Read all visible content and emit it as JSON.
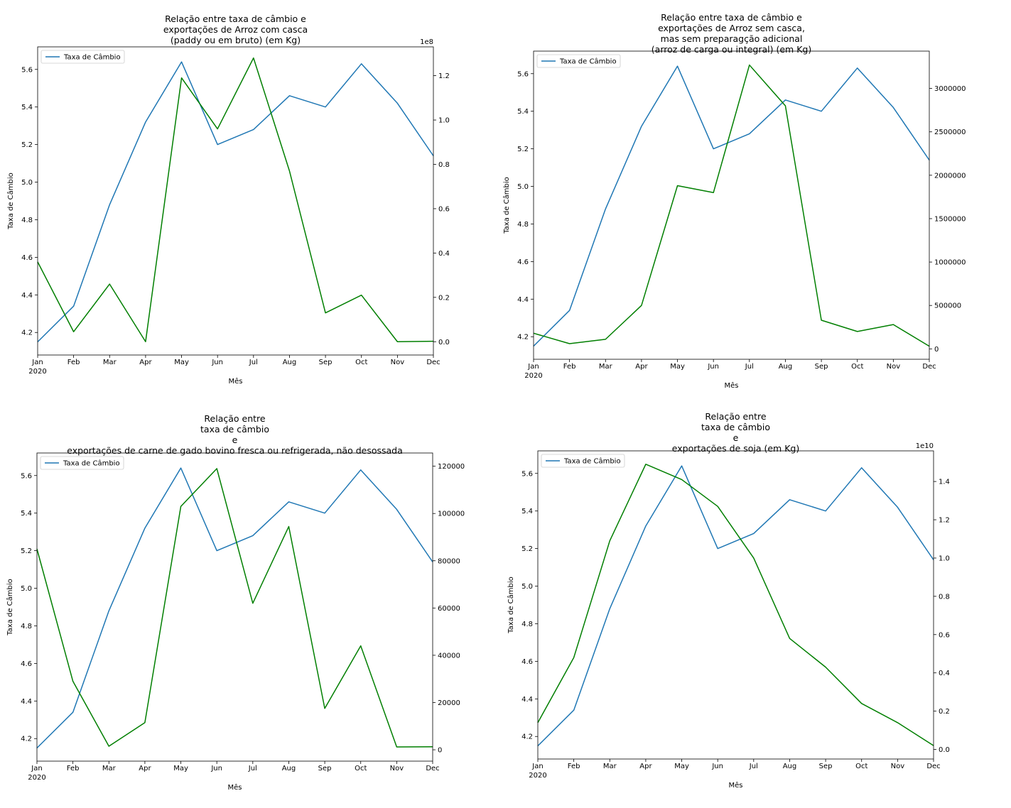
{
  "figure": {
    "background": "#ffffff"
  },
  "colors": {
    "exchange_rate": "#1f77b4",
    "exports": "#007f00"
  },
  "chart_data": [
    {
      "type": "line",
      "title": "Relação entre taxa de câmbio e\nexportações de Arroz com casca\n(paddy ou em bruto) (em Kg)",
      "xlabel": "Mês",
      "ylabel": "Taxa de Câmbio",
      "y2label": "",
      "categories": [
        "Jan",
        "Feb",
        "Mar",
        "Apr",
        "May",
        "Jun",
        "Jul",
        "Aug",
        "Sep",
        "Oct",
        "Nov",
        "Dec"
      ],
      "year_label": "2020",
      "ylim": [
        4.08,
        5.72
      ],
      "yticks": [
        4.2,
        4.4,
        4.6,
        4.8,
        5.0,
        5.2,
        5.4,
        5.6
      ],
      "y2lim": [
        -0.06,
        1.33
      ],
      "y2ticks": [
        0.0,
        0.2,
        0.4,
        0.6,
        0.8,
        1.0,
        1.2
      ],
      "y2_offset_text": "1e8",
      "legend": {
        "label": "Taxa de Câmbio",
        "loc": "upper left"
      },
      "grid": false,
      "series": [
        {
          "name": "Taxa de Câmbio",
          "axis": "left",
          "values": [
            4.15,
            4.34,
            4.88,
            5.32,
            5.64,
            5.2,
            5.28,
            5.46,
            5.4,
            5.63,
            5.42,
            5.14
          ]
        },
        {
          "axis": "right",
          "values": [
            0.36,
            0.045,
            0.26,
            0.0,
            1.19,
            0.96,
            1.28,
            0.77,
            0.13,
            0.21,
            0.0,
            0.002
          ]
        }
      ]
    },
    {
      "type": "line",
      "title": "Relação entre taxa de câmbio e\nexportações de Arroz sem casca,\nmas sem preparagção adicional\n(arroz de carga ou integral) (em Kg)",
      "xlabel": "Mês",
      "ylabel": "Taxa de Câmbio",
      "y2label": "",
      "categories": [
        "Jan",
        "Feb",
        "Mar",
        "Apr",
        "May",
        "Jun",
        "Jul",
        "Aug",
        "Sep",
        "Oct",
        "Nov",
        "Dec"
      ],
      "year_label": "2020",
      "ylim": [
        4.08,
        5.72
      ],
      "yticks": [
        4.2,
        4.4,
        4.6,
        4.8,
        5.0,
        5.2,
        5.4,
        5.6
      ],
      "y2lim": [
        -120000,
        3430000
      ],
      "y2ticks": [
        0,
        500000,
        1000000,
        1500000,
        2000000,
        2500000,
        3000000
      ],
      "y2_offset_text": "",
      "legend": {
        "label": "Taxa de Câmbio",
        "loc": "upper left"
      },
      "grid": false,
      "series": [
        {
          "name": "Taxa de Câmbio",
          "axis": "left",
          "values": [
            4.15,
            4.34,
            4.88,
            5.32,
            5.64,
            5.2,
            5.28,
            5.46,
            5.4,
            5.63,
            5.42,
            5.14
          ]
        },
        {
          "axis": "right",
          "values": [
            180000,
            60000,
            110000,
            500000,
            1880000,
            1800000,
            3270000,
            2800000,
            330000,
            200000,
            280000,
            30000
          ]
        }
      ]
    },
    {
      "type": "line",
      "title": "Relação entre\ntaxa de câmbio\ne\nexportações de carne de gado bovino fresca ou refrigerada, não desossada",
      "xlabel": "Mês",
      "ylabel": "Taxa de Câmbio",
      "y2label": "",
      "categories": [
        "Jan",
        "Feb",
        "Mar",
        "Apr",
        "May",
        "Jun",
        "Jul",
        "Aug",
        "Sep",
        "Oct",
        "Nov",
        "Dec"
      ],
      "year_label": "2020",
      "ylim": [
        4.08,
        5.72
      ],
      "yticks": [
        4.2,
        4.4,
        4.6,
        4.8,
        5.0,
        5.2,
        5.4,
        5.6
      ],
      "y2lim": [
        -4800,
        125600
      ],
      "y2ticks": [
        0,
        20000,
        40000,
        60000,
        80000,
        100000,
        120000
      ],
      "y2_offset_text": "",
      "legend": {
        "label": "Taxa de Câmbio",
        "loc": "upper left"
      },
      "grid": false,
      "series": [
        {
          "name": "Taxa de Câmbio",
          "axis": "left",
          "values": [
            4.15,
            4.34,
            4.88,
            5.32,
            5.64,
            5.2,
            5.28,
            5.46,
            5.4,
            5.63,
            5.42,
            5.14
          ]
        },
        {
          "axis": "right",
          "values": [
            85000,
            29000,
            1500,
            11500,
            103000,
            119000,
            62000,
            94500,
            17500,
            44000,
            1200,
            1300
          ]
        }
      ]
    },
    {
      "type": "line",
      "title": "Relação entre\ntaxa de câmbio\ne\nexportações de soja (em Kg)",
      "xlabel": "Mês",
      "ylabel": "Taxa de Câmbio",
      "y2label": "",
      "categories": [
        "Jan",
        "Feb",
        "Mar",
        "Apr",
        "May",
        "Jun",
        "Jul",
        "Aug",
        "Sep",
        "Oct",
        "Nov",
        "Dec"
      ],
      "year_label": "2020",
      "ylim": [
        4.08,
        5.72
      ],
      "yticks": [
        4.2,
        4.4,
        4.6,
        4.8,
        5.0,
        5.2,
        5.4,
        5.6
      ],
      "y2lim": [
        -0.05,
        1.56
      ],
      "y2ticks": [
        0.0,
        0.2,
        0.4,
        0.6,
        0.8,
        1.0,
        1.2,
        1.4
      ],
      "y2_offset_text": "1e10",
      "legend": {
        "label": "Taxa de Câmbio",
        "loc": "upper left"
      },
      "grid": false,
      "series": [
        {
          "name": "Taxa de Câmbio",
          "axis": "left",
          "values": [
            4.15,
            4.34,
            4.88,
            5.32,
            5.64,
            5.2,
            5.28,
            5.46,
            5.4,
            5.63,
            5.42,
            5.14
          ]
        },
        {
          "axis": "right",
          "values": [
            0.14,
            0.48,
            1.09,
            1.49,
            1.41,
            1.27,
            1.0,
            0.58,
            0.43,
            0.24,
            0.14,
            0.02
          ]
        }
      ]
    }
  ]
}
